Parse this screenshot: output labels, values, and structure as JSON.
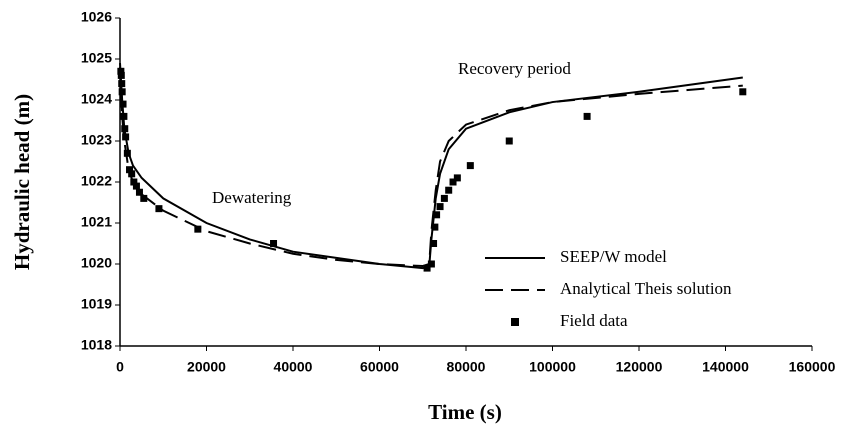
{
  "chart_data": {
    "type": "line",
    "xlabel": "Time (s)",
    "ylabel": "Hydraulic head (m)",
    "annotations": [
      "Recovery period",
      "Dewatering"
    ],
    "xlim": [
      0,
      160000
    ],
    "xticks": [
      0,
      20000,
      40000,
      60000,
      80000,
      100000,
      120000,
      140000,
      160000
    ],
    "ylim": [
      1018,
      1026
    ],
    "yticks": [
      1018,
      1019,
      1020,
      1021,
      1022,
      1023,
      1024,
      1025,
      1026
    ],
    "grid": false,
    "legend": "lower right",
    "series": [
      {
        "name": "SEEP/W model",
        "type": "line",
        "dash": "solid",
        "color": "#000000",
        "x": [
          0,
          500,
          1000,
          2000,
          3000,
          5000,
          10000,
          20000,
          30000,
          40000,
          50000,
          60000,
          70000,
          71500,
          72000,
          73000,
          74000,
          76000,
          80000,
          90000,
          100000,
          120000,
          144000
        ],
        "values": [
          1024.9,
          1024.0,
          1023.3,
          1022.7,
          1022.4,
          1022.1,
          1021.6,
          1021.0,
          1020.6,
          1020.3,
          1020.15,
          1020.0,
          1019.9,
          1019.95,
          1020.6,
          1021.6,
          1022.2,
          1022.8,
          1023.3,
          1023.7,
          1023.95,
          1024.2,
          1024.55
        ]
      },
      {
        "name": "Analytical Theis solution",
        "type": "line",
        "dash": "dashed",
        "color": "#000000",
        "x": [
          0,
          500,
          1000,
          2000,
          3000,
          5000,
          10000,
          20000,
          30000,
          40000,
          50000,
          60000,
          70000,
          71500,
          72000,
          73000,
          74000,
          76000,
          80000,
          90000,
          100000,
          120000,
          144000
        ],
        "values": [
          1024.8,
          1023.6,
          1023.0,
          1022.3,
          1022.0,
          1021.7,
          1021.3,
          1020.8,
          1020.5,
          1020.25,
          1020.1,
          1020.0,
          1019.95,
          1020.0,
          1020.8,
          1021.8,
          1022.5,
          1023.0,
          1023.4,
          1023.75,
          1023.95,
          1024.15,
          1024.35
        ]
      },
      {
        "name": "Field data",
        "type": "scatter",
        "color": "#000000",
        "x": [
          200,
          300,
          400,
          500,
          700,
          900,
          1100,
          1300,
          1700,
          2200,
          2700,
          3200,
          3800,
          4500,
          5500,
          9000,
          18000,
          35500,
          71000,
          72000,
          72500,
          72800,
          73200,
          74000,
          75000,
          76000,
          77000,
          78000,
          81000,
          90000,
          108000,
          144000
        ],
        "values": [
          1024.7,
          1024.6,
          1024.4,
          1024.2,
          1023.9,
          1023.6,
          1023.3,
          1023.1,
          1022.7,
          1022.3,
          1022.2,
          1022.0,
          1021.9,
          1021.75,
          1021.6,
          1021.35,
          1020.85,
          1020.5,
          1019.9,
          1020.0,
          1020.5,
          1020.9,
          1021.2,
          1021.4,
          1021.6,
          1021.8,
          1022.0,
          1022.1,
          1022.4,
          1023.0,
          1023.6,
          1024.2
        ]
      }
    ]
  }
}
